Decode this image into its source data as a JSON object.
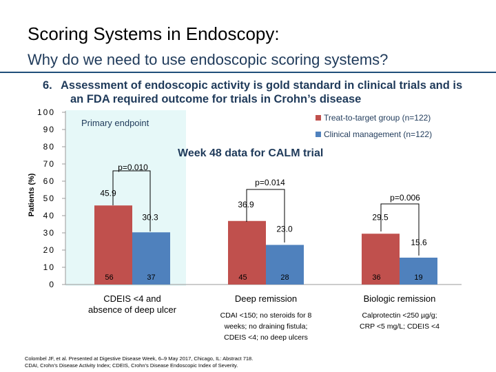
{
  "slide": {
    "title": "Scoring Systems in Endoscopy:",
    "subtitle": "Why do we need to use endoscopic scoring systems?",
    "point_number": "6.",
    "point_line1": "Assessment of endoscopic activity is gold standard in clinical trials and is",
    "point_line2": "an FDA required outcome for trials in Crohn’s disease",
    "footnote_line1": "Colombel JF, et al. Presented at Digestive Disease Week, 6–9 May 2017, Chicago, IL: Abstract 718.",
    "footnote_line2": "CDAI, Crohn’s Disease Activity Index; CDEIS, Crohn’s Disease Endoscopic Index of Severity."
  },
  "colors": {
    "treat": "#c0504d",
    "clinical": "#4f81bd",
    "highlight": "#e6f8f8",
    "title_blue": "#1f3a5a"
  },
  "chart_data": {
    "type": "bar",
    "title": "Week 48 data for CALM trial",
    "ylabel": "Patients (%)",
    "ylim": [
      0,
      100
    ],
    "yticks": [
      "0",
      "10",
      "20",
      "30",
      "40",
      "50",
      "60",
      "70",
      "80",
      "90",
      "100"
    ],
    "highlight_label": "Primary endpoint",
    "categories": [
      "CDEIS <4 and absence of deep ulcer",
      "Deep remission",
      "Biologic remission"
    ],
    "category_notes": [
      "",
      "CDAI <150; no steroids for 8 weeks; no draining fistula; CDEIS <4; no deep ulcers",
      "Calprotectin <250 µg/g; CRP <5 mg/L; CDEIS <4"
    ],
    "series": [
      {
        "name": "Treat-to-target group (n=122)",
        "values": [
          45.9,
          36.9,
          29.5
        ],
        "value_labels": [
          "45.9",
          "36.9",
          "29.5"
        ],
        "n": [
          "56",
          "45",
          "36"
        ]
      },
      {
        "name": "Clinical management (n=122)",
        "values": [
          30.3,
          23.0,
          15.6
        ],
        "value_labels": [
          "30.3",
          "23.0",
          "15.6"
        ],
        "n": [
          "37",
          "28",
          "19"
        ]
      }
    ],
    "p_values": [
      "p=0.010",
      "p=0.014",
      "p=0.006"
    ]
  }
}
